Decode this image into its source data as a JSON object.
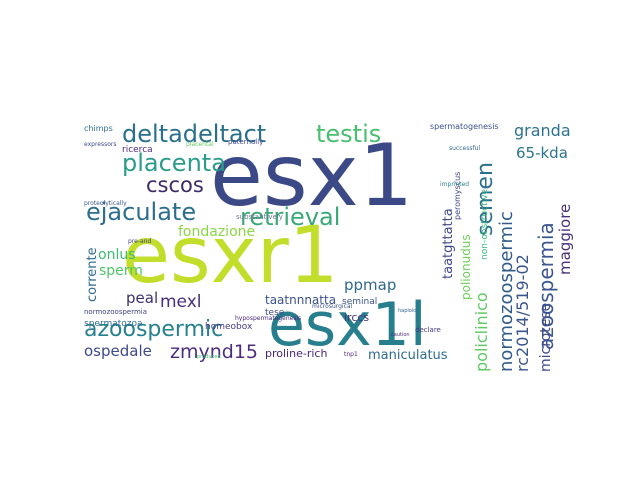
{
  "words": [
    {
      "text": "esx1",
      "color": "#3b4a86"
    },
    {
      "text": "esxr1",
      "color": "#c3dd2b"
    },
    {
      "text": "esx1l",
      "color": "#277f8e"
    },
    {
      "text": "deltadeltact",
      "color": "#2a6f8b"
    },
    {
      "text": "testis",
      "color": "#46c06f"
    },
    {
      "text": "placenta",
      "color": "#2c9c8a"
    },
    {
      "text": "ejaculate",
      "color": "#2d6e8e"
    },
    {
      "text": "retrieval",
      "color": "#3aa877"
    },
    {
      "text": "cscos",
      "color": "#3d2b66"
    },
    {
      "text": "semen",
      "color": "#2d708e"
    },
    {
      "text": "normozoospermic",
      "color": "#2f5c8a"
    },
    {
      "text": "azoospermia",
      "color": "#3a5590"
    },
    {
      "text": "azoospermic",
      "color": "#27808e"
    },
    {
      "text": "zmynd15",
      "color": "#4b2d7f"
    },
    {
      "text": "policlinico",
      "color": "#5ec962"
    },
    {
      "text": "rc2014/519-02",
      "color": "#39568c"
    },
    {
      "text": "microtese",
      "color": "#3e4c8a"
    },
    {
      "text": "maggiore",
      "color": "#48307a"
    },
    {
      "text": "granda",
      "color": "#2c738e"
    },
    {
      "text": "65-kda",
      "color": "#2b758e"
    },
    {
      "text": "mexl",
      "color": "#472d7b"
    },
    {
      "text": "peal",
      "color": "#3e2f6b"
    },
    {
      "text": "fondazione",
      "color": "#8bd646"
    },
    {
      "text": "sperm",
      "color": "#52c569"
    },
    {
      "text": "onlus",
      "color": "#3dbb74"
    },
    {
      "text": "corrente",
      "color": "#2e6b8e"
    },
    {
      "text": "ppmap",
      "color": "#30678d"
    },
    {
      "text": "ospedale",
      "color": "#3e4989"
    },
    {
      "text": "maniculatus",
      "color": "#2f6b8e"
    },
    {
      "text": "taatnnnatta",
      "color": "#3b528b"
    },
    {
      "text": "taatgttatta",
      "color": "#3f4889"
    },
    {
      "text": "polionudus",
      "color": "#6ece58"
    },
    {
      "text": "proline-rich",
      "color": "#482576"
    },
    {
      "text": "irccs",
      "color": "#46307e"
    },
    {
      "text": "homeobox",
      "color": "#443a83"
    },
    {
      "text": "tese",
      "color": "#3e4a89"
    },
    {
      "text": "seminal",
      "color": "#3b528b"
    },
    {
      "text": "spermatozoa",
      "color": "#2e6d8e"
    },
    {
      "text": "ricerca",
      "color": "#4c2a7d"
    },
    {
      "text": "non-obstructive",
      "color": "#35b779"
    },
    {
      "text": "peromyscus",
      "color": "#3f4889"
    },
    {
      "text": "normozoospermia",
      "color": "#3f4788"
    },
    {
      "text": "substantively",
      "color": "#6b7b8f"
    },
    {
      "text": "chimps",
      "color": "#2e6e8e"
    },
    {
      "text": "spermatogenesis",
      "color": "#3a538b"
    },
    {
      "text": "hypospermatogenesis",
      "color": "#482878"
    },
    {
      "text": "paternally",
      "color": "#3e4989"
    },
    {
      "text": "placental",
      "color": "#67cc5c"
    },
    {
      "text": "declare",
      "color": "#443983"
    },
    {
      "text": "tnp1",
      "color": "#481f70"
    },
    {
      "text": "microsurgical",
      "color": "#3b528b"
    },
    {
      "text": "expressors",
      "color": "#3e4c8a"
    },
    {
      "text": "successful",
      "color": "#31688e"
    },
    {
      "text": "imprinted",
      "color": "#25858e"
    },
    {
      "text": "proteolytically",
      "color": "#38598c"
    },
    {
      "text": "pre-and",
      "color": "#433e85"
    },
    {
      "text": "produced",
      "color": "#44bf70"
    },
    {
      "text": "haploid",
      "color": "#31678e"
    },
    {
      "text": "caution",
      "color": "#482979"
    }
  ]
}
